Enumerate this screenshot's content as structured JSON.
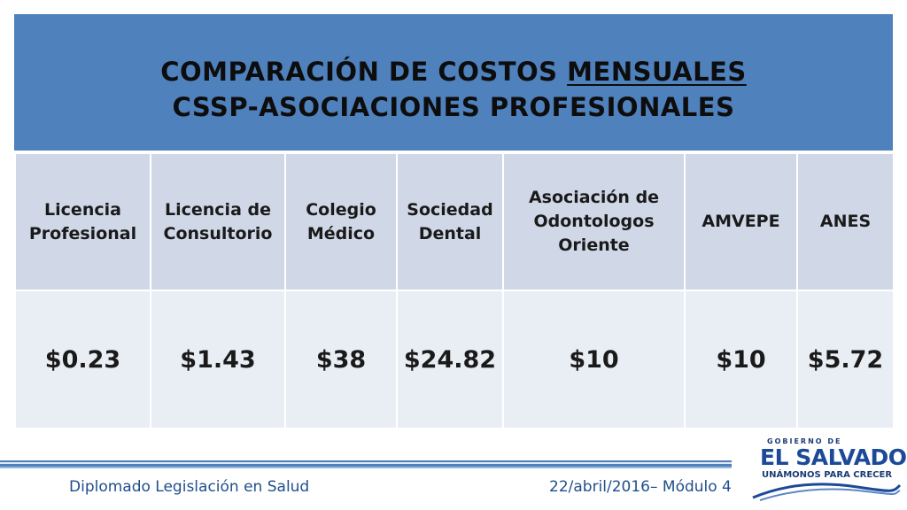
{
  "title": {
    "line1_prefix": "COMPARACIÓN DE COSTOS ",
    "line1_underlined": "MENSUALES",
    "line2": "CSSP-ASOCIACIONES PROFESIONALES"
  },
  "table": {
    "headers": [
      [
        "Licencia",
        "Profesional"
      ],
      [
        "Licencia de",
        "Consultorio"
      ],
      [
        "Colegio",
        "Médico"
      ],
      [
        "Sociedad",
        "Dental"
      ],
      [
        "Asociación de",
        "Odontologos",
        "Oriente"
      ],
      [
        "AMVEPE"
      ],
      [
        "ANES"
      ]
    ],
    "values": [
      "$0.23",
      "$1.43",
      "$38",
      "$24.82",
      "$10",
      "$10",
      "$5.72"
    ]
  },
  "footer": {
    "left": "Diplomado Legislación en Salud",
    "right": "22/abril/2016– Módulo 4"
  },
  "logo": {
    "top_text": "GOBIERNO DE",
    "main_text": "EL SALVADOR",
    "slogan": "UNÁMONOS PARA CRECER"
  },
  "colors": {
    "title_background": "#4f81bd",
    "header_cell": "#d0d8e8",
    "value_cell": "#e9edf4",
    "footer_text": "#1f4e8c"
  }
}
